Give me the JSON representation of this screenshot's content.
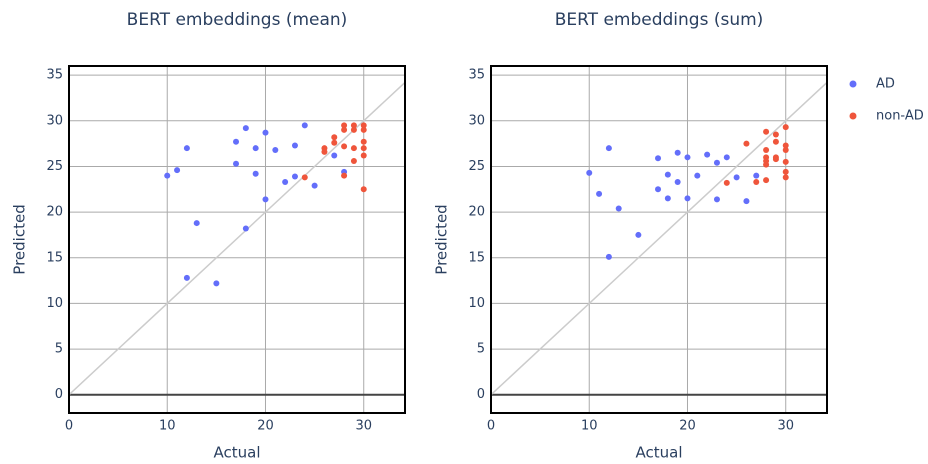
{
  "chart_data": [
    {
      "type": "scatter",
      "title": "BERT embeddings (mean)",
      "x_label": "Actual",
      "y_label": "Predicted",
      "xlim": [
        0,
        34.2
      ],
      "ylim": [
        -2,
        36
      ],
      "xticks": [
        0,
        10,
        20,
        30
      ],
      "yticks": [
        0,
        5,
        10,
        15,
        20,
        25,
        30,
        35
      ],
      "grid": true,
      "series": [
        {
          "color": "#636efa",
          "x": [
            10,
            11,
            12,
            13,
            12,
            15,
            17,
            17,
            18,
            18,
            19,
            19,
            20,
            20,
            21,
            22,
            23,
            23,
            24,
            25,
            27,
            28
          ],
          "values": [
            24,
            24.6,
            27,
            18.8,
            12.8,
            12.2,
            27.7,
            25.3,
            29.2,
            18.2,
            27,
            24.2,
            28.7,
            21.4,
            26.8,
            23.3,
            27.3,
            23.9,
            29.5,
            22.9,
            26.2,
            24.4
          ]
        },
        {
          "color": "#ef553b",
          "x": [
            24,
            26,
            26,
            27,
            27,
            28,
            28,
            28,
            28,
            29,
            29,
            29,
            29,
            30,
            30,
            30,
            30,
            30,
            30
          ],
          "values": [
            23.8,
            27,
            26.6,
            28.2,
            27.6,
            29.5,
            29,
            27.2,
            24,
            29.5,
            29,
            27,
            25.6,
            29.5,
            29,
            27.7,
            27,
            26.2,
            22.5
          ]
        }
      ]
    },
    {
      "type": "scatter",
      "title": "BERT embeddings (sum)",
      "x_label": "Actual",
      "y_label": "Predicted",
      "xlim": [
        0,
        34.2
      ],
      "ylim": [
        -2,
        36
      ],
      "xticks": [
        0,
        10,
        20,
        30
      ],
      "yticks": [
        0,
        5,
        10,
        15,
        20,
        25,
        30,
        35
      ],
      "grid": true,
      "series": [
        {
          "name": "AD",
          "color": "#636efa",
          "x": [
            10,
            11,
            12,
            12,
            13,
            15,
            17,
            17,
            18,
            18,
            19,
            19,
            20,
            20,
            21,
            22,
            23,
            23,
            24,
            25,
            26,
            27
          ],
          "values": [
            24.3,
            22,
            27,
            15.1,
            20.4,
            17.5,
            25.9,
            22.5,
            24.1,
            21.5,
            26.5,
            23.3,
            26,
            21.5,
            24,
            26.3,
            25.4,
            21.4,
            26,
            23.8,
            21.2,
            24
          ]
        },
        {
          "name": "non-AD",
          "color": "#ef553b",
          "x": [
            24,
            26,
            27,
            28,
            28,
            28,
            28,
            28,
            28,
            29,
            29,
            29,
            29,
            30,
            30,
            30,
            30,
            30,
            30
          ],
          "values": [
            23.2,
            27.5,
            23.3,
            28.8,
            26.8,
            26,
            25.6,
            25.2,
            23.5,
            28.5,
            27.7,
            26,
            25.8,
            29.3,
            27.3,
            26.8,
            25.5,
            24.4,
            23.8
          ]
        }
      ]
    }
  ]
}
